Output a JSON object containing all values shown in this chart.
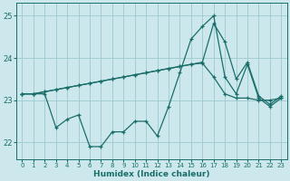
{
  "xlabel": "Humidex (Indice chaleur)",
  "bg_color": "#cce8ec",
  "grid_color": "#9dc8d0",
  "line_color": "#1a6e6a",
  "xlim": [
    -0.5,
    23.5
  ],
  "ylim": [
    21.6,
    25.3
  ],
  "yticks": [
    22,
    23,
    24,
    25
  ],
  "xticks": [
    0,
    1,
    2,
    3,
    4,
    5,
    6,
    7,
    8,
    9,
    10,
    11,
    12,
    13,
    14,
    15,
    16,
    17,
    18,
    19,
    20,
    21,
    22,
    23
  ],
  "line1_x": [
    0,
    1,
    2,
    3,
    4,
    5,
    6,
    7,
    8,
    9,
    10,
    11,
    12,
    13,
    14,
    15,
    16,
    17,
    18,
    19,
    20,
    21,
    22,
    23
  ],
  "line1_y": [
    23.15,
    23.15,
    23.15,
    22.35,
    22.55,
    22.65,
    21.9,
    21.9,
    22.25,
    22.25,
    22.5,
    22.5,
    22.15,
    22.85,
    23.65,
    24.45,
    24.75,
    25.0,
    23.55,
    23.15,
    23.85,
    23.05,
    22.85,
    23.05
  ],
  "line2_x": [
    0,
    1,
    2,
    3,
    4,
    5,
    6,
    7,
    8,
    9,
    10,
    11,
    12,
    13,
    14,
    15,
    16,
    17,
    18,
    19,
    20,
    21,
    22,
    23
  ],
  "line2_y": [
    23.15,
    23.15,
    23.2,
    23.25,
    23.3,
    23.35,
    23.4,
    23.45,
    23.5,
    23.55,
    23.6,
    23.65,
    23.7,
    23.75,
    23.8,
    23.85,
    23.88,
    23.55,
    23.15,
    23.05,
    23.05,
    23.0,
    23.0,
    23.05
  ],
  "line3_x": [
    0,
    1,
    2,
    3,
    4,
    5,
    6,
    7,
    8,
    9,
    10,
    11,
    12,
    13,
    14,
    15,
    16,
    17,
    18,
    19,
    20,
    21,
    22,
    23
  ],
  "line3_y": [
    23.15,
    23.15,
    23.2,
    23.25,
    23.3,
    23.35,
    23.4,
    23.45,
    23.5,
    23.55,
    23.6,
    23.65,
    23.7,
    23.75,
    23.8,
    23.85,
    23.9,
    24.82,
    24.38,
    23.5,
    23.9,
    23.1,
    22.9,
    23.1
  ]
}
